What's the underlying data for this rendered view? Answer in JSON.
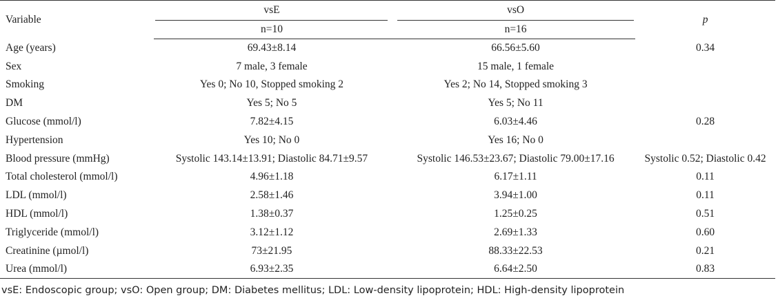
{
  "header": {
    "variable": "Variable",
    "vse": "vsE",
    "vso": "vsO",
    "p": "p",
    "vse_n": "n=10",
    "vso_n": "n=16"
  },
  "rows": [
    {
      "variable": "Age (years)",
      "vse": "69.43±8.14",
      "vso": "66.56±5.60",
      "p": "0.34"
    },
    {
      "variable": "Sex",
      "vse": "7 male, 3 female",
      "vso": "15 male, 1 female",
      "p": ""
    },
    {
      "variable": "Smoking",
      "vse": "Yes 0; No 10, Stopped smoking 2",
      "vso": "Yes 2; No 14, Stopped smoking 3",
      "p": ""
    },
    {
      "variable": "DM",
      "vse": "Yes 5; No 5",
      "vso": "Yes 5; No 11",
      "p": ""
    },
    {
      "variable": "Glucose (mmol/l)",
      "vse": "7.82±4.15",
      "vso": "6.03±4.46",
      "p": "0.28"
    },
    {
      "variable": "Hypertension",
      "vse": "Yes 10; No 0",
      "vso": "Yes 16; No 0",
      "p": ""
    },
    {
      "variable": "Blood pressure (mmHg)",
      "vse": "Systolic 143.14±13.91; Diastolic 84.71±9.57",
      "vso": "Systolic 146.53±23.67;  Diastolic 79.00±17.16",
      "p": "Systolic 0.52;  Diastolic 0.42"
    },
    {
      "variable": "Total cholesterol (mmol/l)",
      "vse": "4.96±1.18",
      "vso": "6.17±1.11",
      "p": "0.11"
    },
    {
      "variable": "LDL (mmol/l)",
      "vse": "2.58±1.46",
      "vso": "3.94±1.00",
      "p": "0.11"
    },
    {
      "variable": "HDL (mmol/l)",
      "vse": "1.38±0.37",
      "vso": "1.25±0.25",
      "p": "0.51"
    },
    {
      "variable": "Triglyceride (mmol/l)",
      "vse": "3.12±1.12",
      "vso": "2.69±1.33",
      "p": "0.60"
    },
    {
      "variable": "Creatinine  (µmol/l)",
      "vse": "73±21.95",
      "vso": "88.33±22.53",
      "p": "0.21"
    },
    {
      "variable": "Urea (mmol/l)",
      "vse": "6.93±2.35",
      "vso": "6.64±2.50",
      "p": "0.83"
    }
  ],
  "footnote": "vsE: Endoscopic group; vsO: Open group; DM: Diabetes mellitus; LDL: Low-density lipoprotein; HDL: High-density lipoprotein"
}
